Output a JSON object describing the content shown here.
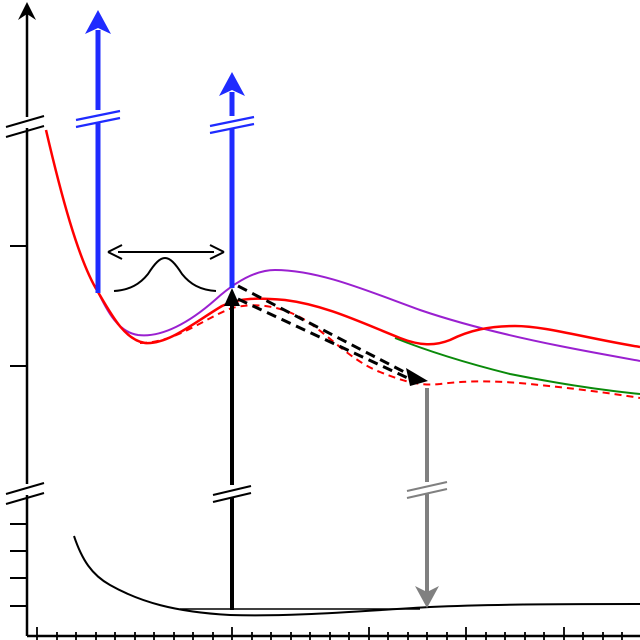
{
  "diagram": {
    "description_visible_text": "",
    "colors": {
      "background": "#ffffff",
      "axis": "#000000",
      "excitation_arrow": "#1f2bff",
      "ground_curve": "#000000",
      "red_curve": "#ff0000",
      "purple_curve": "#9a20d0",
      "green_curve": "#0a8a0a",
      "gray_arrow": "#808080"
    },
    "icons": [
      "axis-break-icon",
      "arrow-up-icon",
      "double-headed-arrow-icon",
      "gaussian-peak-icon",
      "dashed-arrow-icon",
      "arrow-down-icon"
    ]
  }
}
